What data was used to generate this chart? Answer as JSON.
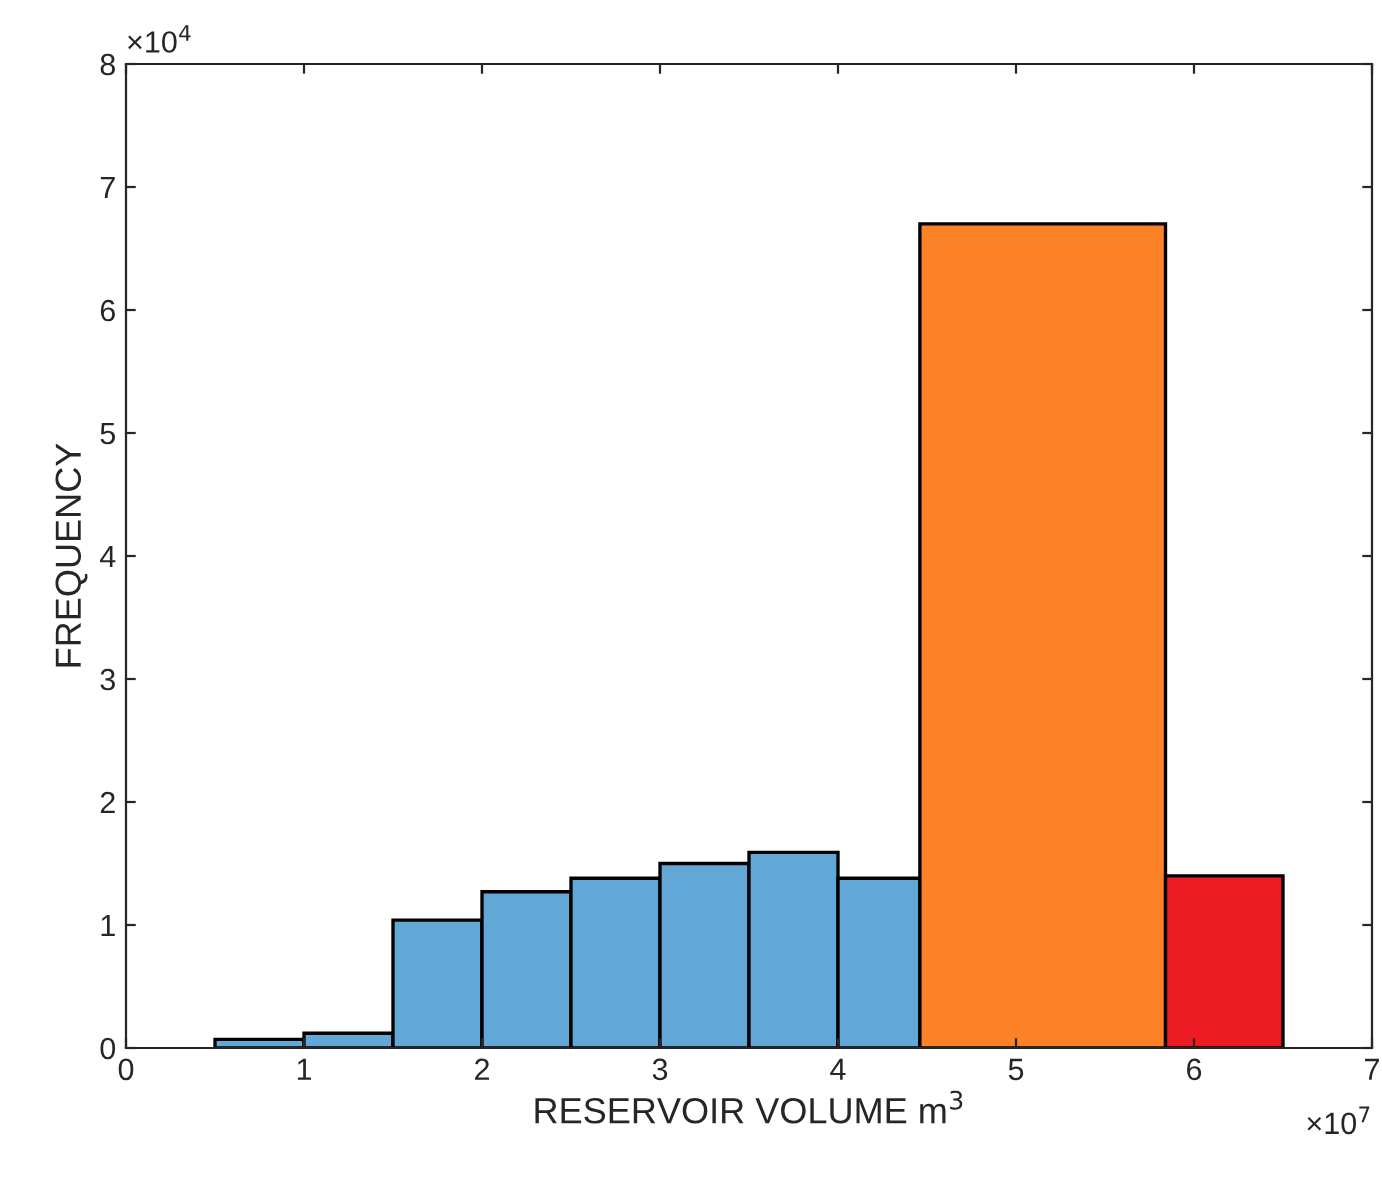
{
  "chart_data": {
    "type": "histogram",
    "xlabel": "RESERVOIR VOLUME m$^{3}$",
    "ylabel": "FREQUENCY",
    "bins": [
      0.5,
      1,
      1.5,
      2,
      2.5,
      3,
      3.5,
      4,
      4.46,
      5.84,
      6.5
    ],
    "values": [
      0.07,
      0.12,
      1.04,
      1.27,
      1.38,
      1.5,
      1.59,
      1.38,
      6.7,
      1.4
    ],
    "colors": [
      "#62a8d7",
      "#62a8d7",
      "#62a8d7",
      "#62a8d7",
      "#62a8d7",
      "#62a8d7",
      "#62a8d7",
      "#62a8d7",
      "#fd8127",
      "#ed1c24"
    ],
    "xlim": [
      0,
      7
    ],
    "xticks": [
      0,
      1,
      2,
      3,
      4,
      5,
      6,
      7
    ],
    "ylim": [
      0,
      8
    ],
    "yticks": [
      0,
      1,
      2,
      3,
      4,
      5,
      6,
      7,
      8
    ],
    "annotations": [
      "×10$^{4}$",
      "×10$^{7}$"
    ],
    "grid": false,
    "legend": false
  }
}
